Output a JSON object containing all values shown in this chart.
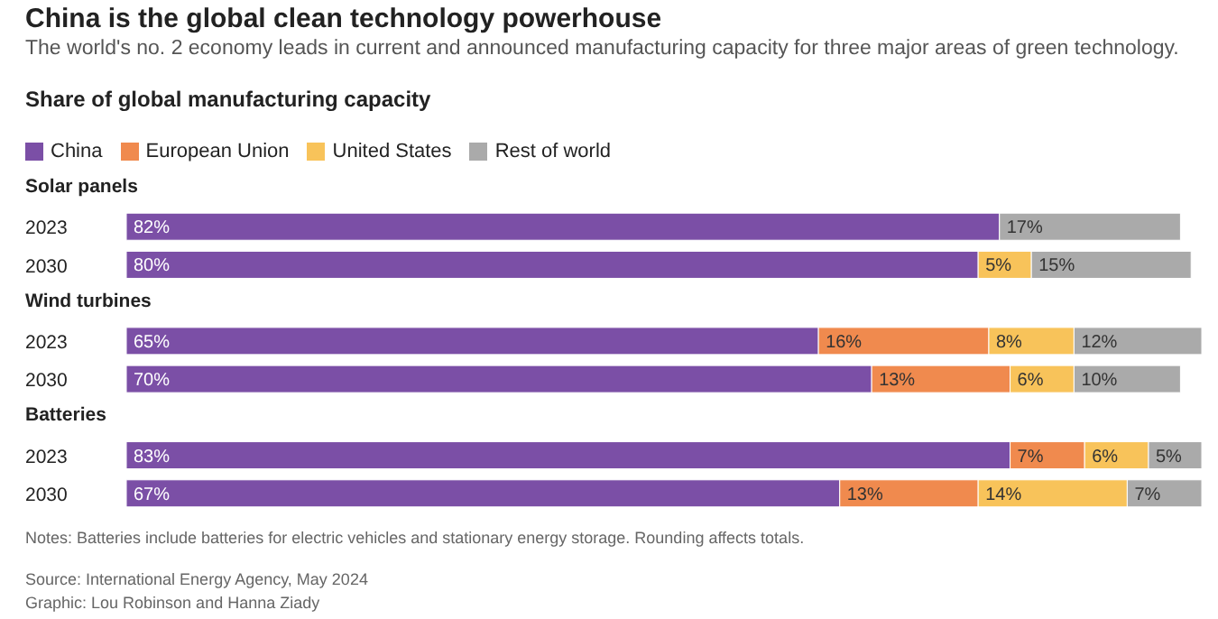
{
  "chart_data": {
    "type": "bar",
    "title": "China is the global clean technology powerhouse",
    "subtitle": "The world's no. 2 economy leads in current and announced manufacturing capacity for three major areas of green technology.",
    "orientation": "horizontal",
    "stacked": true,
    "legend": "top left",
    "categories": [
      "Solar panels",
      "2023",
      "2030",
      "Wind turbines",
      "2023",
      "2030",
      "Batteries",
      "2023",
      "2030"
    ],
    "series": [
      {
        "name": "China",
        "color": "#7b4fa6",
        "values": [
          null,
          82,
          80,
          null,
          65,
          70,
          null,
          83,
          67
        ],
        "value_labels": [
          null,
          "82%",
          "80%",
          null,
          "65%",
          "70%",
          null,
          "83%",
          "67%"
        ]
      },
      {
        "name": "European Union",
        "color": "#f08a4e",
        "values": [
          null,
          null,
          null,
          null,
          16,
          13,
          null,
          7,
          13
        ],
        "value_labels": [
          null,
          null,
          null,
          null,
          "16%",
          "13%",
          null,
          "7%",
          "13%"
        ]
      },
      {
        "name": "United States",
        "color": "#f8c35a",
        "values": [
          null,
          null,
          5,
          null,
          8,
          6,
          null,
          6,
          14
        ],
        "value_labels": [
          null,
          null,
          "5%",
          null,
          "8%",
          "6%",
          null,
          "6%",
          "14%"
        ]
      },
      {
        "name": "Rest of world",
        "color": "#aaaaaa",
        "values": [
          null,
          17,
          15,
          null,
          12,
          10,
          null,
          5,
          7
        ],
        "value_labels": [
          null,
          "17%",
          "15%",
          null,
          "12%",
          "10%",
          null,
          "5%",
          "7%"
        ]
      }
    ],
    "annotations": [
      "Share of global manufacturing capacity",
      "Notes: Batteries include batteries for electric vehicles and stationary energy storage. Rounding affects totals.",
      "Source: International Energy Agency, May 2024",
      "Graphic: Lou Robinson and Hanna Ziady"
    ]
  }
}
